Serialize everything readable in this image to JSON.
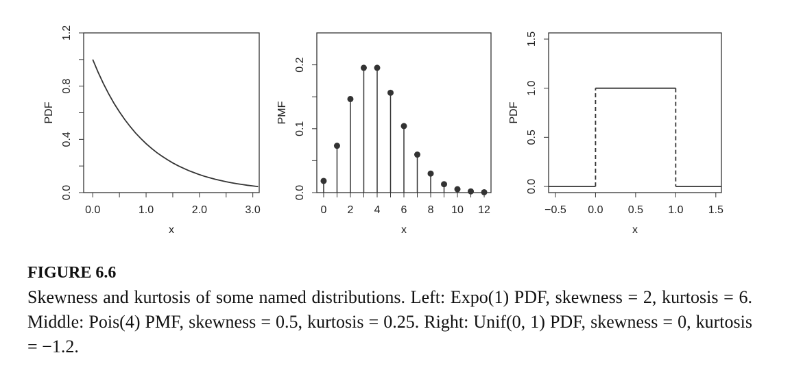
{
  "chart_data": [
    {
      "type": "line",
      "xlabel": "x",
      "ylabel": "PDF",
      "color": "#333333",
      "x": [
        0,
        0.1,
        0.2,
        0.3,
        0.4,
        0.5,
        0.6,
        0.7,
        0.8,
        0.9,
        1.0,
        1.1,
        1.2,
        1.3,
        1.4,
        1.5,
        1.6,
        1.7,
        1.8,
        1.9,
        2.0,
        2.1,
        2.2,
        2.3,
        2.4,
        2.5,
        2.6,
        2.7,
        2.8,
        2.9,
        3.0,
        3.1
      ],
      "values": [
        1,
        0.905,
        0.819,
        0.741,
        0.67,
        0.607,
        0.549,
        0.497,
        0.449,
        0.407,
        0.368,
        0.333,
        0.301,
        0.273,
        0.247,
        0.223,
        0.202,
        0.183,
        0.165,
        0.15,
        0.135,
        0.122,
        0.111,
        0.1,
        0.091,
        0.082,
        0.074,
        0.067,
        0.061,
        0.055,
        0.05,
        0.045
      ],
      "xlim": [
        -0.17,
        3.12
      ],
      "ylim": [
        0,
        1.2
      ],
      "xticks": [
        {
          "value": 0,
          "label": "0.0"
        },
        {
          "value": 0.5,
          "label": null
        },
        {
          "value": 1,
          "label": "1.0"
        },
        {
          "value": 1.5,
          "label": null
        },
        {
          "value": 2,
          "label": "2.0"
        },
        {
          "value": 2.5,
          "label": null
        },
        {
          "value": 3,
          "label": "3.0"
        }
      ],
      "yticks": [
        {
          "value": 0,
          "label": "0.0"
        },
        {
          "value": 0.2,
          "label": null
        },
        {
          "value": 0.4,
          "label": "0.4"
        },
        {
          "value": 0.6,
          "label": null
        },
        {
          "value": 0.8,
          "label": "0.8"
        },
        {
          "value": 1.0,
          "label": null
        },
        {
          "value": 1.2,
          "label": "1.2"
        }
      ]
    },
    {
      "type": "stem",
      "xlabel": "x",
      "ylabel": "PMF",
      "color": "#333333",
      "x": [
        0,
        1,
        2,
        3,
        4,
        5,
        6,
        7,
        8,
        9,
        10,
        11,
        12
      ],
      "values": [
        0.0183,
        0.0733,
        0.1465,
        0.1954,
        0.1954,
        0.1563,
        0.1042,
        0.0595,
        0.0298,
        0.0132,
        0.0053,
        0.0019,
        0.0006
      ],
      "xlim": [
        -0.51,
        12.51
      ],
      "ylim": [
        0,
        0.25
      ],
      "xticks": [
        0,
        {
          "value": 1,
          "label": null
        },
        2,
        {
          "value": 3,
          "label": null
        },
        4,
        {
          "value": 5,
          "label": null
        },
        6,
        {
          "value": 7,
          "label": null
        },
        8,
        {
          "value": 9,
          "label": null
        },
        10,
        {
          "value": 11,
          "label": null
        },
        12
      ],
      "yticks": [
        {
          "value": 0,
          "label": "0.0"
        },
        {
          "value": 0.05,
          "label": null
        },
        0.1,
        {
          "value": 0.15,
          "label": null
        },
        0.2
      ]
    },
    {
      "type": "step",
      "xlabel": "x",
      "ylabel": "PDF",
      "color": "#333333",
      "x": [
        -0.6,
        0,
        0,
        1,
        1,
        1.6
      ],
      "values": [
        0,
        0,
        1,
        1,
        0,
        0
      ],
      "xlim": [
        -0.585,
        1.57
      ],
      "ylim": [
        -0.063,
        1.563
      ],
      "xticks": [
        {
          "value": -0.5,
          "label": "−0.5"
        },
        {
          "value": 0,
          "label": "0.0"
        },
        0.5,
        {
          "value": 1,
          "label": "1.0"
        },
        1.5
      ],
      "yticks": [
        {
          "value": 0,
          "label": "0.0"
        },
        0.5,
        {
          "value": 1,
          "label": "1.0"
        },
        1.5
      ]
    }
  ],
  "caption": {
    "label": "FIGURE 6.6",
    "text": "Skewness and kurtosis of some named distributions. Left: Expo(1) PDF, skewness = 2, kurtosis = 6. Middle: Pois(4) PMF, skewness = 0.5, kurtosis = 0.25. Right: Unif(0, 1) PDF, skewness = 0, kurtosis = −1.2."
  }
}
